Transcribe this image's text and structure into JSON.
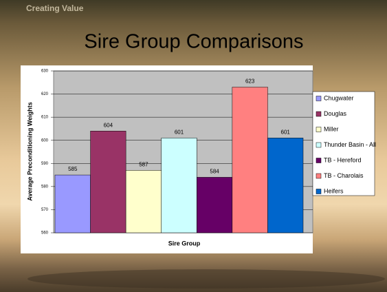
{
  "header": "Creating Value",
  "chart_data": {
    "type": "bar",
    "title": "Sire Group Comparisons",
    "y_label": "Average Preconditioning Weights",
    "x_label": "Sire Group",
    "categories": [
      null
    ],
    "series": [
      {
        "name": "Chugwater",
        "color": "#9999ff",
        "values": [
          585
        ]
      },
      {
        "name": "Douglas",
        "color": "#993366",
        "values": [
          604
        ]
      },
      {
        "name": "Miller",
        "color": "#ffffcc",
        "values": [
          587
        ]
      },
      {
        "name": "Thunder Basin - All",
        "color": "#ccffff",
        "values": [
          601
        ]
      },
      {
        "name": "TB - Hereford",
        "color": "#660066",
        "values": [
          584
        ]
      },
      {
        "name": "TB - Charolais",
        "color": "#ff8080",
        "values": [
          623
        ]
      },
      {
        "name": "Heifers",
        "color": "#0066cc",
        "values": [
          601
        ]
      }
    ],
    "ylim": [
      560,
      630
    ],
    "yticks": [
      560,
      570,
      580,
      590,
      600,
      610,
      620,
      630
    ],
    "grid": true
  }
}
